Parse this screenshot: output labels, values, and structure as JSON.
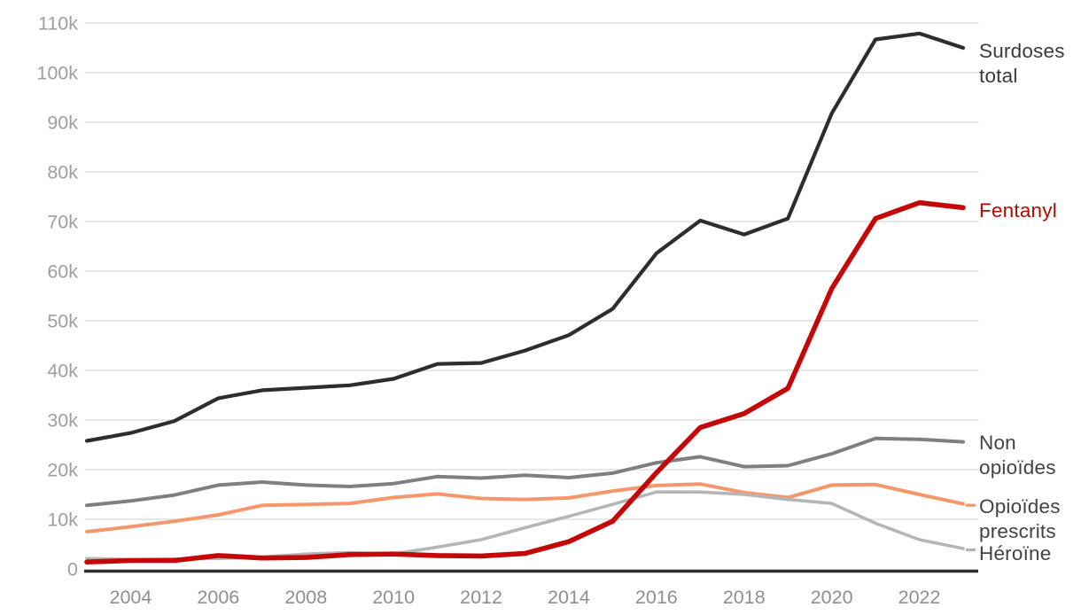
{
  "chart_data": {
    "type": "line",
    "title": "",
    "xlabel": "",
    "ylabel": "",
    "grid": true,
    "background": "#ffffff",
    "gridline_color": "#e8e8e8",
    "axis_line_color": "#2d2d2d",
    "tick_label_color_y": "#9e9e9e",
    "tick_label_color_x": "#8f8f8f",
    "x": [
      2003,
      2004,
      2005,
      2006,
      2007,
      2008,
      2009,
      2010,
      2011,
      2012,
      2013,
      2014,
      2015,
      2016,
      2017,
      2018,
      2019,
      2020,
      2021,
      2022,
      2023
    ],
    "x_axis": {
      "tick_years": [
        2004,
        2006,
        2008,
        2010,
        2012,
        2014,
        2016,
        2018,
        2020,
        2022
      ],
      "tick_labels": [
        "2004",
        "2006",
        "2008",
        "2010",
        "2012",
        "2014",
        "2016",
        "2018",
        "2020",
        "2022"
      ]
    },
    "y_axis": {
      "min": 0,
      "max": 110,
      "unit": "k",
      "tick_values": [
        0,
        10,
        20,
        30,
        40,
        50,
        60,
        70,
        80,
        90,
        100,
        110
      ],
      "tick_labels": [
        "0",
        "10k",
        "20k",
        "30k",
        "40k",
        "50k",
        "60k",
        "70k",
        "80k",
        "90k",
        "100k",
        "110k"
      ]
    },
    "legend_position": "right-of-line-ends",
    "series": [
      {
        "id": "surdoses-total",
        "name": "Surdoses total",
        "label_lines": [
          "Surdoses",
          "total"
        ],
        "color": "#2d2d2d",
        "label_color": "#3a3a3a",
        "stroke_width": 4.2,
        "end_dash": false,
        "values_k": [
          25.8,
          27.4,
          29.8,
          34.4,
          36.0,
          36.5,
          37.0,
          38.3,
          41.3,
          41.5,
          44.0,
          47.1,
          52.4,
          63.6,
          70.2,
          67.4,
          70.6,
          91.8,
          106.7,
          107.9,
          105.0
        ]
      },
      {
        "id": "fentanyl",
        "name": "Fentanyl",
        "label_lines": [
          "Fentanyl"
        ],
        "color": "#c40808",
        "label_color": "#b20a00",
        "stroke_width": 5.6,
        "end_dash": false,
        "values_k": [
          1.4,
          1.7,
          1.7,
          2.7,
          2.2,
          2.3,
          2.9,
          3.0,
          2.7,
          2.6,
          3.1,
          5.5,
          9.6,
          19.4,
          28.5,
          31.3,
          36.4,
          56.5,
          70.6,
          73.8,
          72.8
        ]
      },
      {
        "id": "non-opioides",
        "name": "Non opioïdes",
        "label_lines": [
          "Non",
          "opioïdes"
        ],
        "color": "#7f7f7f",
        "label_color": "#434343",
        "stroke_width": 4.0,
        "end_dash": false,
        "values_k": [
          12.8,
          13.7,
          14.9,
          16.9,
          17.5,
          16.9,
          16.6,
          17.2,
          18.6,
          18.3,
          18.9,
          18.4,
          19.3,
          21.4,
          22.6,
          20.6,
          20.8,
          23.2,
          26.3,
          26.1,
          25.6
        ]
      },
      {
        "id": "opioides-prescrits",
        "name": "Opioïdes prescrits",
        "label_lines": [
          "Opioïdes",
          "prescrits"
        ],
        "color": "#f6976b",
        "label_color": "#434343",
        "stroke_width": 4.0,
        "end_dash": true,
        "values_k": [
          7.5,
          8.5,
          9.6,
          10.9,
          12.8,
          13.0,
          13.2,
          14.4,
          15.1,
          14.2,
          14.0,
          14.3,
          15.7,
          16.8,
          17.1,
          15.4,
          14.4,
          16.9,
          17.0,
          15.0,
          13.1
        ]
      },
      {
        "id": "heroine",
        "name": "Héroïne",
        "label_lines": [
          "Héroïne"
        ],
        "color": "#b5b5b5",
        "label_color": "#434343",
        "stroke_width": 3.6,
        "end_dash": true,
        "values_k": [
          2.1,
          1.9,
          2.0,
          2.1,
          2.4,
          3.0,
          3.3,
          3.0,
          4.4,
          5.9,
          8.3,
          10.6,
          13.0,
          15.5,
          15.5,
          15.0,
          14.0,
          13.2,
          9.2,
          5.9,
          4.1
        ]
      }
    ]
  }
}
